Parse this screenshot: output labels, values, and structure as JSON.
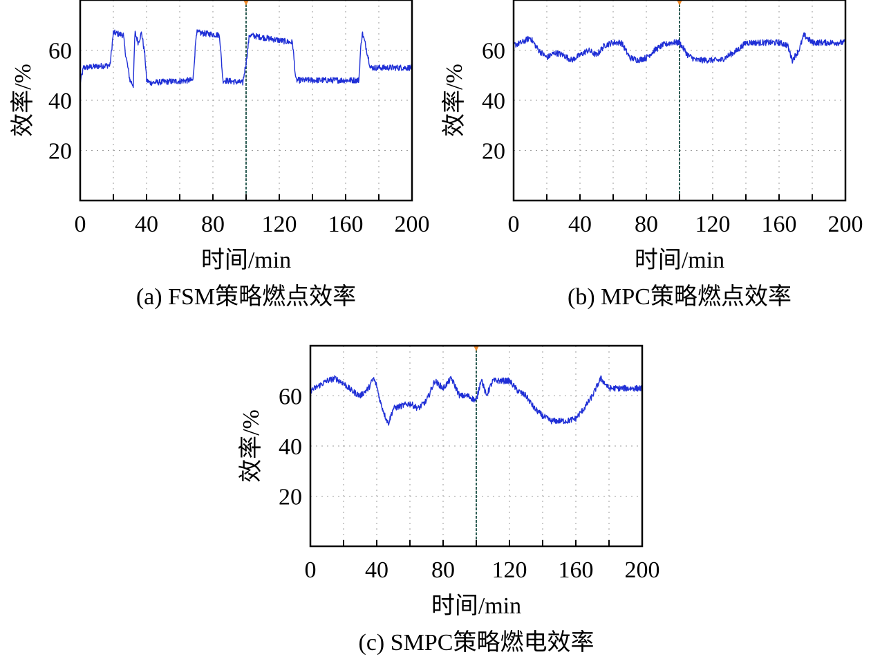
{
  "colors": {
    "line": "#1f2fd6",
    "grid": "#9a9a9a",
    "cursor": "#2d5e55",
    "marker": "#f08a2b",
    "axis": "#000000"
  },
  "chart_data": [
    {
      "type": "line",
      "panel": "a",
      "caption": "(a) FSM策略燃点效率",
      "xlabel": "时间/min",
      "ylabel": "效率/%",
      "xlim": [
        0,
        200
      ],
      "ylim": [
        0,
        80
      ],
      "xticks": [
        0,
        40,
        80,
        120,
        160,
        200
      ],
      "yticks": [
        20,
        40,
        60
      ],
      "grid": true,
      "cursor_x": 100,
      "series": [
        {
          "x": [
            0,
            2,
            18,
            20,
            26,
            27,
            30,
            32,
            33,
            35,
            37,
            39,
            40,
            42,
            68,
            70,
            84,
            86,
            98,
            100,
            102,
            128,
            130,
            168,
            169,
            170,
            172,
            175,
            200
          ],
          "values": [
            47,
            53,
            54,
            67,
            66,
            60,
            48,
            46,
            67,
            63,
            67,
            58,
            48,
            47,
            48,
            67,
            66,
            48,
            47,
            55,
            66,
            63,
            48,
            48,
            60,
            67,
            62,
            53,
            53
          ]
        }
      ]
    },
    {
      "type": "line",
      "panel": "b",
      "caption": "(b) MPC策略燃点效率",
      "xlabel": "时间/min",
      "ylabel": "效率/%",
      "xlim": [
        0,
        200
      ],
      "ylim": [
        0,
        80
      ],
      "xticks": [
        0,
        40,
        80,
        120,
        160,
        200
      ],
      "yticks": [
        20,
        40,
        60
      ],
      "grid": true,
      "cursor_x": 100,
      "series": [
        {
          "x": [
            0,
            5,
            10,
            15,
            20,
            25,
            30,
            35,
            40,
            45,
            50,
            55,
            60,
            65,
            70,
            75,
            80,
            85,
            90,
            95,
            100,
            105,
            110,
            120,
            125,
            130,
            135,
            140,
            150,
            160,
            165,
            168,
            172,
            175,
            180,
            190,
            200
          ],
          "values": [
            62,
            63,
            65,
            60,
            57,
            59,
            58,
            56,
            58,
            60,
            58,
            62,
            63,
            63,
            57,
            56,
            57,
            60,
            62,
            63,
            63,
            58,
            56,
            56,
            56,
            58,
            60,
            63,
            63,
            63,
            62,
            56,
            60,
            66,
            63,
            63,
            63
          ]
        }
      ]
    },
    {
      "type": "line",
      "panel": "c",
      "caption": "(c) SMPC策略燃电效率",
      "xlabel": "时间/min",
      "ylabel": "效率/%",
      "xlim": [
        0,
        200
      ],
      "ylim": [
        0,
        80
      ],
      "xticks": [
        0,
        40,
        80,
        120,
        160,
        200
      ],
      "yticks": [
        20,
        40,
        60
      ],
      "grid": true,
      "cursor_x": 100,
      "series": [
        {
          "x": [
            0,
            5,
            10,
            15,
            20,
            25,
            30,
            35,
            38,
            40,
            42,
            45,
            47,
            50,
            55,
            60,
            65,
            70,
            75,
            80,
            85,
            90,
            95,
            100,
            103,
            106,
            110,
            115,
            120,
            125,
            130,
            135,
            140,
            145,
            150,
            155,
            160,
            165,
            170,
            175,
            180,
            190,
            200
          ],
          "values": [
            62,
            64,
            66,
            67,
            65,
            62,
            60,
            63,
            67,
            64,
            58,
            52,
            49,
            55,
            56,
            57,
            55,
            58,
            66,
            63,
            67,
            60,
            60,
            58,
            67,
            60,
            66,
            66,
            66,
            62,
            60,
            55,
            52,
            50,
            50,
            50,
            51,
            55,
            60,
            67,
            63,
            63,
            63
          ]
        }
      ]
    }
  ]
}
